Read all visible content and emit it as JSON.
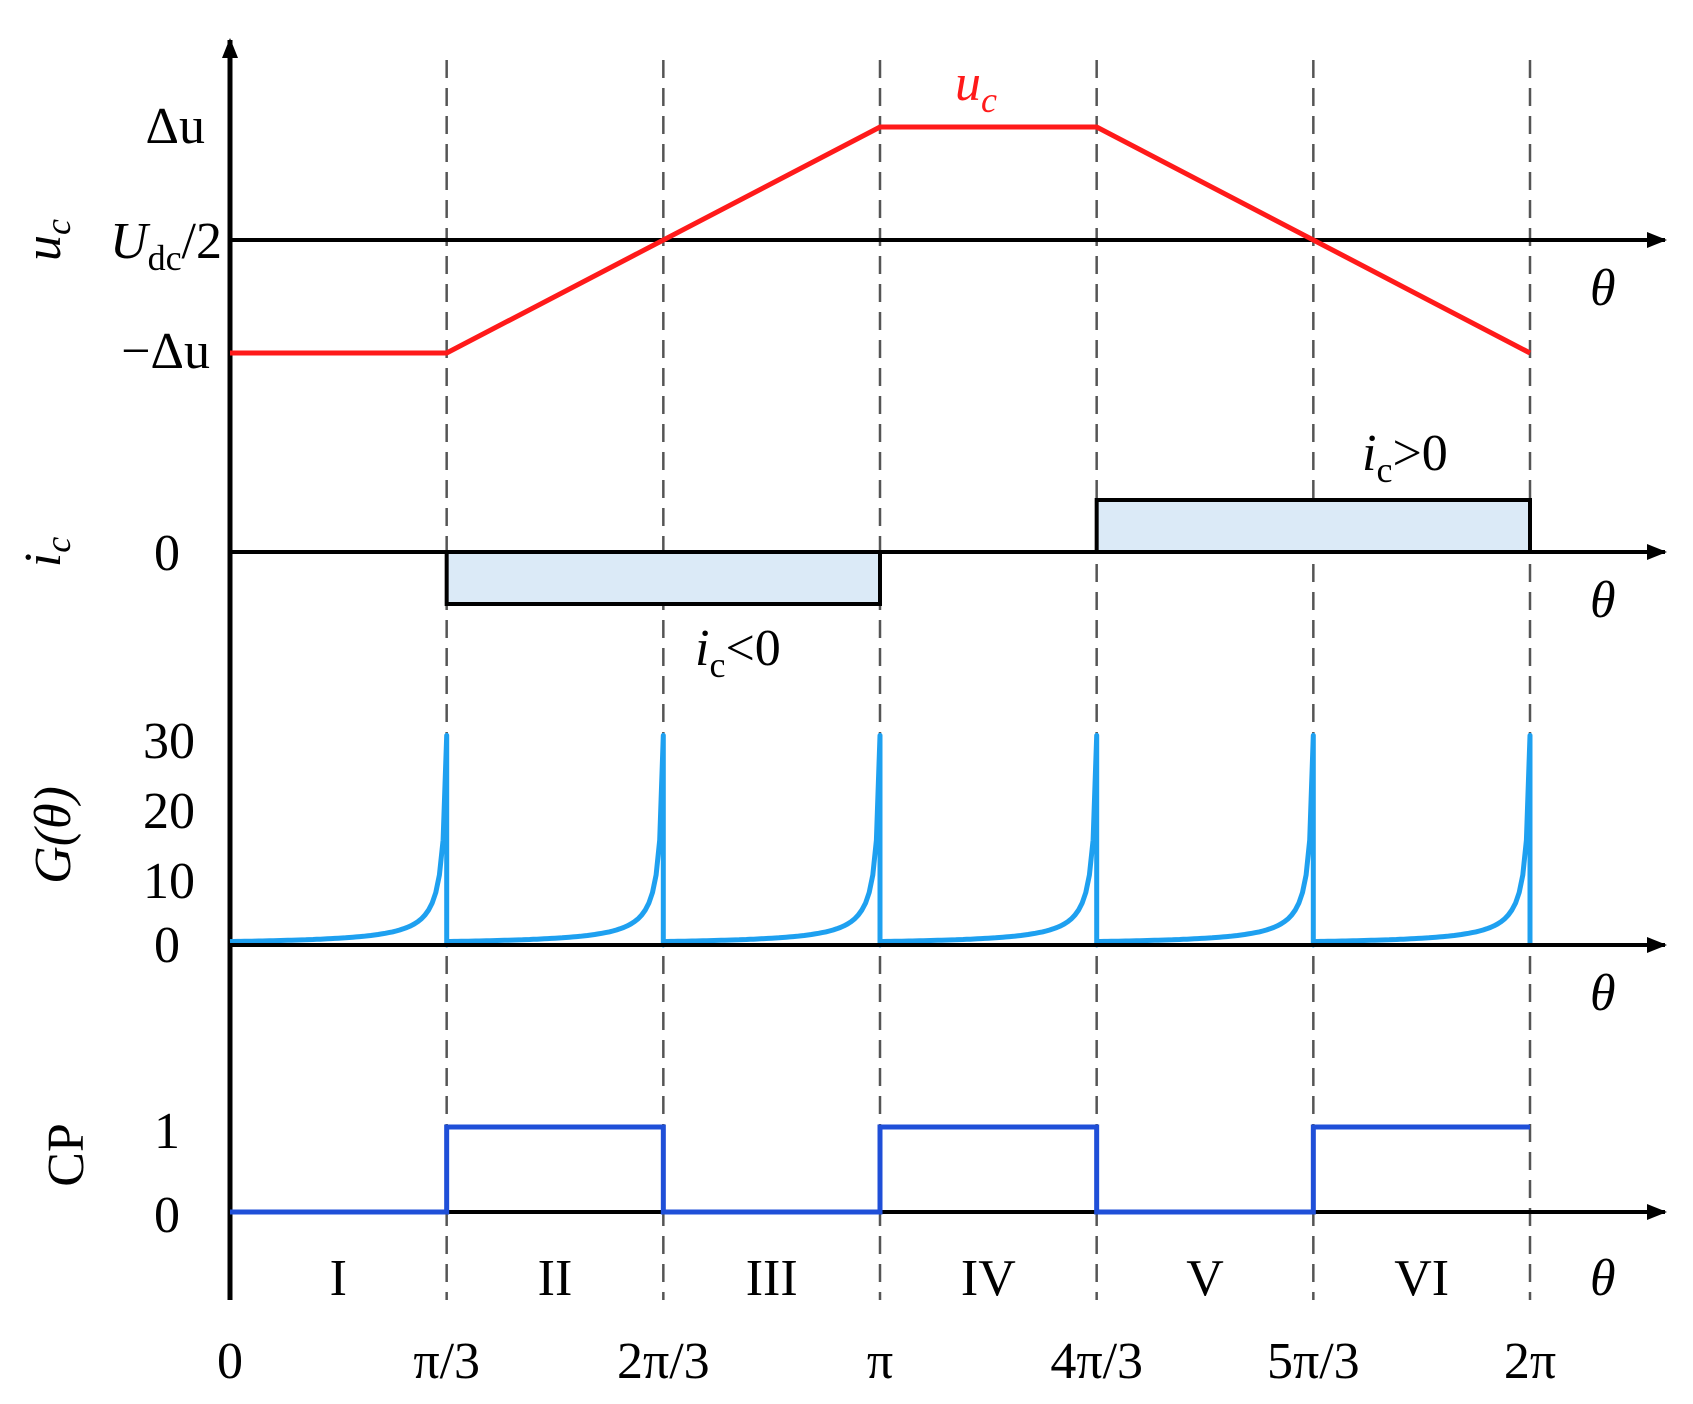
{
  "chart_data": [
    {
      "type": "line",
      "ylabel": "u",
      "ylabel_sub": "c",
      "x_label": "θ",
      "y_ticks": [
        "Δu",
        "U",
        "dc",
        "/2",
        "−Δu"
      ],
      "series": [
        {
          "name": "u",
          "name_sub": "c",
          "color": "#ff1a1a",
          "x_pi": [
            0,
            0.333333,
            1,
            1.333333,
            2
          ],
          "y": [
            -1,
            -1,
            1,
            1,
            -1
          ]
        }
      ]
    },
    {
      "type": "line",
      "ylabel": "i",
      "ylabel_sub": "c",
      "x_label": "θ",
      "y_ticks": [
        "0"
      ],
      "regions": [
        {
          "label": "i",
          "label_sub": "c",
          "label_rest": "<0",
          "x_pi": [
            0.333333,
            1
          ],
          "value": -1
        },
        {
          "label": "i",
          "label_sub": "c",
          "label_rest": ">0",
          "x_pi": [
            1.333333,
            2
          ],
          "value": 1
        }
      ],
      "fill_color": "#dbeaf7"
    },
    {
      "type": "line",
      "ylabel": "G(θ)",
      "x_label": "θ",
      "y_ticks": [
        "30",
        "20",
        "10",
        "0"
      ],
      "ylim": [
        0,
        30
      ],
      "peak": 30,
      "period_pi": 0.333333,
      "color": "#1ea0f0"
    },
    {
      "type": "line",
      "ylabel": "CP",
      "x_label": "θ",
      "y_ticks": [
        "1",
        "0"
      ],
      "color": "#1f4fd8",
      "x_pi": [
        0,
        0.333333,
        0.333333,
        0.666667,
        0.666667,
        1,
        1,
        1.333333,
        1.333333,
        1.666667,
        1.666667,
        2
      ],
      "y": [
        0,
        0,
        1,
        1,
        0,
        0,
        1,
        1,
        0,
        0,
        1,
        1
      ],
      "sectors": [
        "I",
        "II",
        "III",
        "IV",
        "V",
        "VI"
      ]
    }
  ],
  "x_ticks": [
    "0",
    "π/3",
    "2π/3",
    "π",
    "4π/3",
    "5π/3",
    "2π"
  ]
}
